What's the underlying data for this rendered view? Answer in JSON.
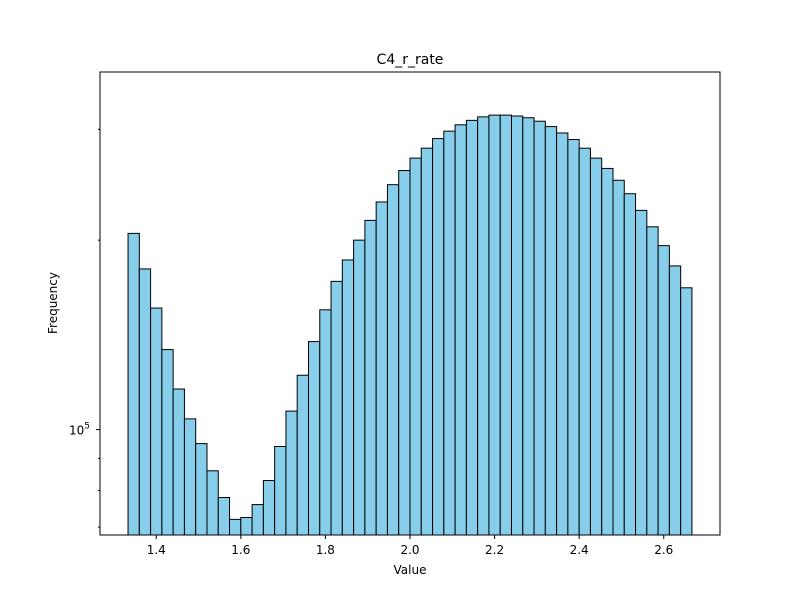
{
  "chart_data": {
    "type": "bar",
    "title": "C4_r_rate",
    "xlabel": "Value",
    "ylabel": "Frequency",
    "yscale": "log",
    "xlim": [
      1.267,
      2.733
    ],
    "ylim": [
      68000,
      370000
    ],
    "x_ticks": [
      1.4,
      1.6,
      1.8,
      2.0,
      2.2,
      2.4,
      2.6
    ],
    "x_tick_labels": [
      "1.4",
      "1.6",
      "1.8",
      "2.0",
      "2.2",
      "2.4",
      "2.6"
    ],
    "y_major_ticks": [
      100000
    ],
    "y_major_tick_base": "10",
    "y_major_tick_exp": "5",
    "y_minor_ticks": [
      70000,
      80000,
      90000,
      200000,
      300000
    ],
    "bin_start": 1.3333,
    "bin_width": 0.026667,
    "values": [
      205000,
      180000,
      156000,
      134000,
      116000,
      104000,
      95000,
      86000,
      78000,
      72000,
      72500,
      76000,
      83000,
      94000,
      107000,
      122000,
      138000,
      155000,
      172000,
      186000,
      200000,
      215000,
      230000,
      245000,
      258000,
      270000,
      280000,
      290000,
      298000,
      305000,
      310000,
      314000,
      316000,
      316000,
      315000,
      313000,
      309000,
      303000,
      296000,
      289000,
      280000,
      270000,
      260000,
      249000,
      237000,
      223000,
      210000,
      196000,
      182000,
      168000
    ],
    "colors": {
      "fill": "#87ceeb",
      "edge": "#000000"
    }
  }
}
